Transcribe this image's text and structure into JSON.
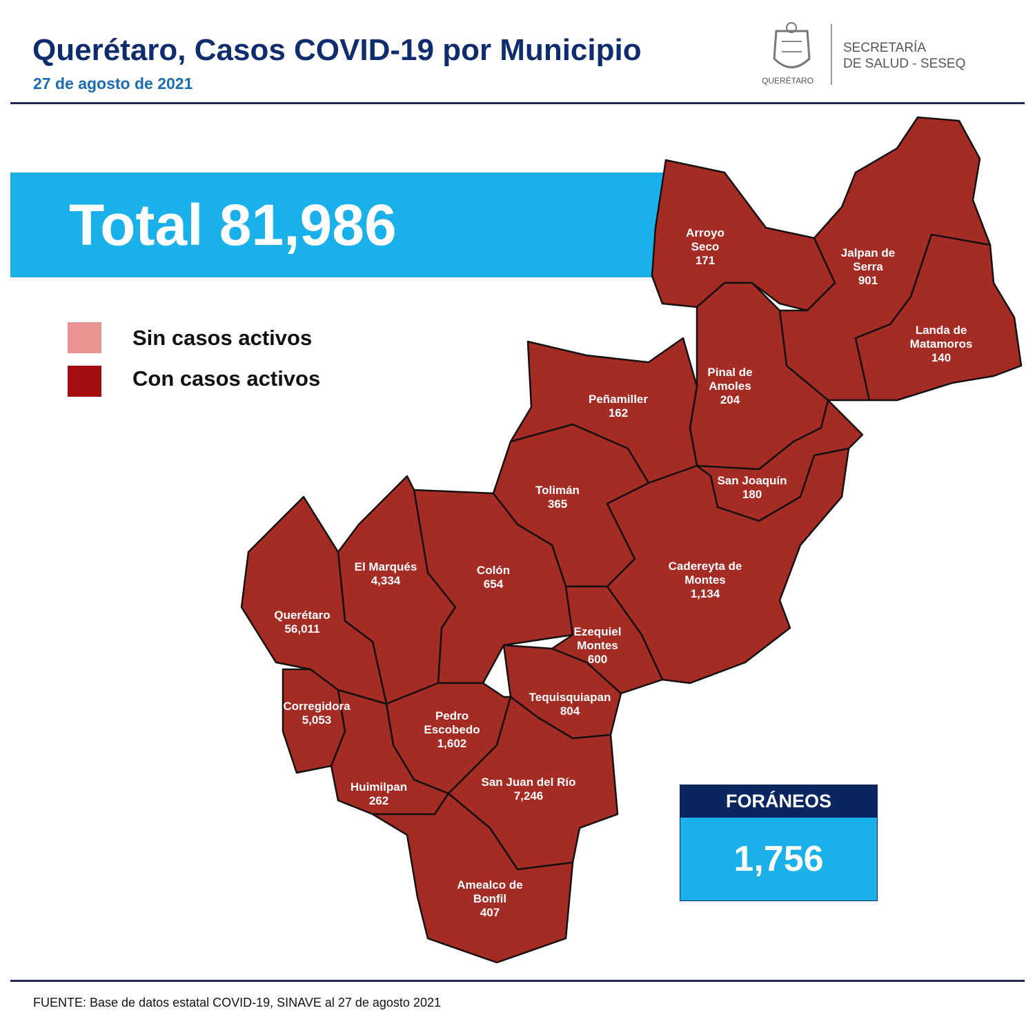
{
  "header": {
    "title": "Querétaro, Casos COVID-19 por Municipio",
    "date": "27 de agosto de 2021",
    "logo_text": "QUERÉTARO",
    "org_line1": "SECRETARÍA",
    "org_line2": "DE SALUD - SESEQ"
  },
  "total": {
    "label": "Total 81,986"
  },
  "legend": [
    {
      "label": "Sin casos activos",
      "color": "#e89292"
    },
    {
      "label": "Con casos activos",
      "color": "#a30f10"
    }
  ],
  "map_fill": "#a52b25",
  "municipios": [
    {
      "name": [
        "Arroyo",
        "Seco"
      ],
      "cases": "171",
      "status": "Con casos activos"
    },
    {
      "name": [
        "Jalpan de",
        "Serra"
      ],
      "cases": "901",
      "status": "Con casos activos"
    },
    {
      "name": [
        "Landa de",
        "Matamoros"
      ],
      "cases": "140",
      "status": "Con casos activos"
    },
    {
      "name": [
        "Pinal de",
        "Amoles"
      ],
      "cases": "204",
      "status": "Con casos activos"
    },
    {
      "name": [
        "Peñamiller"
      ],
      "cases": "162",
      "status": "Con casos activos"
    },
    {
      "name": [
        "San Joaquín"
      ],
      "cases": "180",
      "status": "Con casos activos"
    },
    {
      "name": [
        "Tolimán"
      ],
      "cases": "365",
      "status": "Con casos activos"
    },
    {
      "name": [
        "Cadereyta de",
        "Montes"
      ],
      "cases": "1,134",
      "status": "Con casos activos"
    },
    {
      "name": [
        "Colón"
      ],
      "cases": "654",
      "status": "Con casos activos"
    },
    {
      "name": [
        "El  Marqués"
      ],
      "cases": "4,334",
      "status": "Con casos activos"
    },
    {
      "name": [
        "Querétaro"
      ],
      "cases": "56,011",
      "status": "Con casos activos"
    },
    {
      "name": [
        "Corregidora"
      ],
      "cases": "5,053",
      "status": "Con casos activos"
    },
    {
      "name": [
        "Ezequiel",
        "Montes"
      ],
      "cases": "600",
      "status": "Con casos activos"
    },
    {
      "name": [
        "Tequisquiapan"
      ],
      "cases": "804",
      "status": "Con casos activos"
    },
    {
      "name": [
        "Pedro",
        "Escobedo"
      ],
      "cases": "1,602",
      "status": "Con casos activos"
    },
    {
      "name": [
        "Huimilpan"
      ],
      "cases": "262",
      "status": "Con casos activos"
    },
    {
      "name": [
        "San Juan del Río"
      ],
      "cases": "7,246",
      "status": "Con casos activos"
    },
    {
      "name": [
        "Amealco de",
        "Bonfil"
      ],
      "cases": "407",
      "status": "Con casos activos"
    }
  ],
  "foraneos": {
    "label": "FORÁNEOS",
    "value": "1,756"
  },
  "footer": {
    "source": "FUENTE:  Base de datos estatal COVID-19,  SINAVE  al 27 de agosto 2021"
  }
}
